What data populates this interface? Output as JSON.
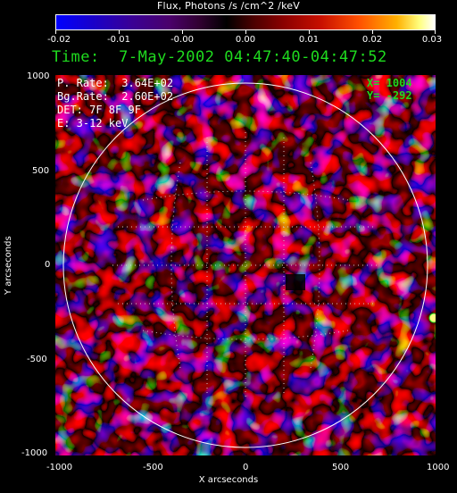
{
  "colorbar": {
    "title": "Flux, Photons /s /cm^2 /keV",
    "ticks": [
      "-0.02",
      "-0.01",
      "-0.00",
      "0.00",
      "0.01",
      "0.02",
      "0.03"
    ]
  },
  "header": {
    "time_text": "Time:  7-May-2002 04:47:40-04:47:52"
  },
  "info": {
    "p_rate": "P. Rate:  3.64E+02",
    "bg_rate": "Bg.Rate:  2.60E+02",
    "det": "DET: 7F 8F 9F",
    "energy": "E: 3-12 keV"
  },
  "cursor": {
    "x_text": "X= 1004",
    "y_text": "Y= -292"
  },
  "axes": {
    "xlabel": "X arcseconds",
    "ylabel": "Y arcseconds",
    "x_ticks": [
      "-1000",
      "-500",
      "0",
      "500",
      "1000"
    ],
    "y_ticks": [
      "1000",
      "500",
      "0",
      "-500",
      "-1000"
    ],
    "xlim": [
      -1000,
      1000
    ],
    "ylim": [
      -1000,
      1000
    ]
  },
  "colors": {
    "time_text": "#1fdc1f",
    "cursor_text": "#1fdc1f",
    "limb": "#ffffff"
  }
}
